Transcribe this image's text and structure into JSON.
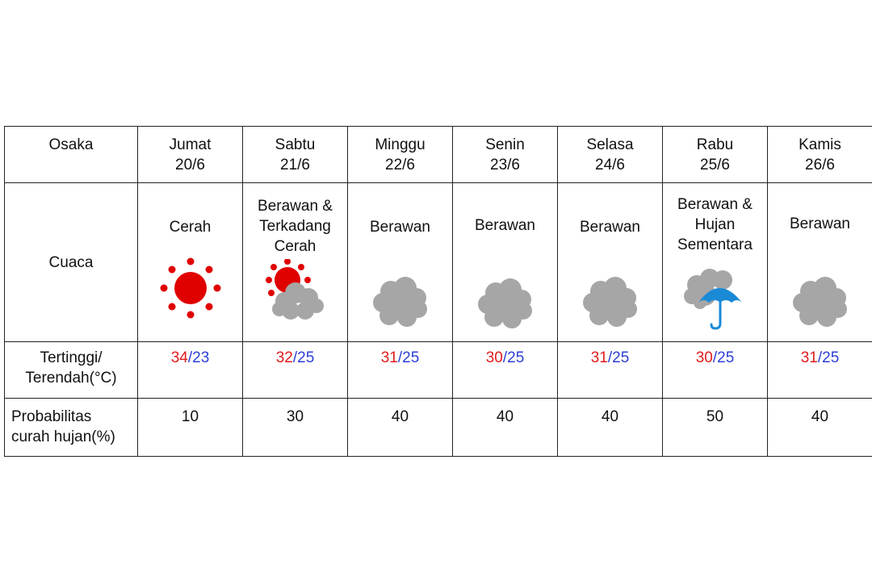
{
  "city": "Osaka",
  "row_labels": {
    "condition": "Cuaca",
    "temperature_line1": "Tertinggi/",
    "temperature_line2": "Terendah(°C)",
    "rain_line1": "Probabilitas",
    "rain_line2": "curah hujan(%)"
  },
  "temp_separator": "/",
  "colors": {
    "high": "#e21b1b",
    "low": "#2b3fd6",
    "sun": "#e00000",
    "cloud": "#a6a6a6",
    "umbrella": "#1a8ad6"
  },
  "days": [
    {
      "day": "Jumat",
      "date": "20/6",
      "cond": [
        "Cerah"
      ],
      "icon": "sun-icon",
      "high": "34",
      "low": "23",
      "rain": "10"
    },
    {
      "day": "Sabtu",
      "date": "21/6",
      "cond": [
        "Berawan &",
        "Terkadang",
        "Cerah"
      ],
      "icon": "cloud-sun-icon",
      "high": "32",
      "low": "25",
      "rain": "30"
    },
    {
      "day": "Minggu",
      "date": "22/6",
      "cond": [
        "Berawan"
      ],
      "icon": "cloud-icon",
      "high": "31",
      "low": "25",
      "rain": "40"
    },
    {
      "day": "Senin",
      "date": "23/6",
      "cond": [
        "Berawan"
      ],
      "icon": "cloud-icon",
      "high": "30",
      "low": "25",
      "rain": "40"
    },
    {
      "day": "Selasa",
      "date": "24/6",
      "cond": [
        "Berawan"
      ],
      "icon": "cloud-icon",
      "high": "31",
      "low": "25",
      "rain": "40"
    },
    {
      "day": "Rabu",
      "date": "25/6",
      "cond": [
        "Berawan &",
        "Hujan",
        "Sementara"
      ],
      "icon": "cloud-umbrella-icon",
      "high": "30",
      "low": "25",
      "rain": "50"
    },
    {
      "day": "Kamis",
      "date": "26/6",
      "cond": [
        "Berawan"
      ],
      "icon": "cloud-icon",
      "high": "31",
      "low": "25",
      "rain": "40"
    }
  ]
}
